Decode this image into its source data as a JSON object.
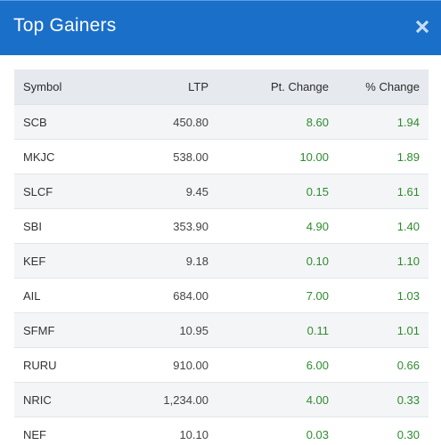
{
  "header": {
    "title": "Top Gainers",
    "close_icon": "close-icon"
  },
  "colors": {
    "header_bg": "#1a6fc9",
    "positive": "#2e8b2e",
    "table_header_bg": "#e6e9ee",
    "row_stripe": "#f4f5f7"
  },
  "table": {
    "columns": [
      "Symbol",
      "LTP",
      "Pt. Change",
      "% Change"
    ],
    "rows": [
      {
        "symbol": "SCB",
        "ltp": "450.80",
        "pt_change": "8.60",
        "pct_change": "1.94"
      },
      {
        "symbol": "MKJC",
        "ltp": "538.00",
        "pt_change": "10.00",
        "pct_change": "1.89"
      },
      {
        "symbol": "SLCF",
        "ltp": "9.45",
        "pt_change": "0.15",
        "pct_change": "1.61"
      },
      {
        "symbol": "SBI",
        "ltp": "353.90",
        "pt_change": "4.90",
        "pct_change": "1.40"
      },
      {
        "symbol": "KEF",
        "ltp": "9.18",
        "pt_change": "0.10",
        "pct_change": "1.10"
      },
      {
        "symbol": "AIL",
        "ltp": "684.00",
        "pt_change": "7.00",
        "pct_change": "1.03"
      },
      {
        "symbol": "SFMF",
        "ltp": "10.95",
        "pt_change": "0.11",
        "pct_change": "1.01"
      },
      {
        "symbol": "RURU",
        "ltp": "910.00",
        "pt_change": "6.00",
        "pct_change": "0.66"
      },
      {
        "symbol": "NRIC",
        "ltp": "1,234.00",
        "pt_change": "4.00",
        "pct_change": "0.33"
      },
      {
        "symbol": "NEF",
        "ltp": "10.10",
        "pt_change": "0.03",
        "pct_change": "0.30"
      }
    ]
  }
}
